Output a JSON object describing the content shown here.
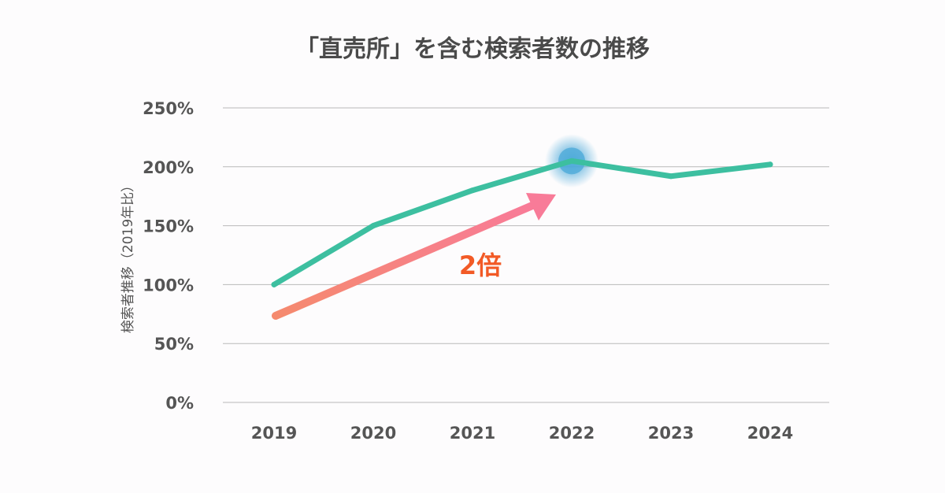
{
  "chart_data": {
    "type": "line",
    "title": "「直売所」を含む検索者数の推移",
    "xlabel": "",
    "ylabel": "検索者推移（2019年比）",
    "categories": [
      "2019",
      "2020",
      "2021",
      "2022",
      "2023",
      "2024"
    ],
    "ylim": [
      0,
      250
    ],
    "yticks": [
      "0%",
      "50%",
      "100%",
      "150%",
      "200%",
      "250%"
    ],
    "grid": true,
    "series": [
      {
        "values": [
          100,
          150,
          180,
          205,
          192,
          202
        ],
        "color": "#3dbfa0"
      }
    ],
    "highlight": {
      "category": "2022",
      "color": "#4aa8d8"
    },
    "annotation": {
      "text": "2倍",
      "arrow_colors": [
        "#f58a6e",
        "#f87b98"
      ],
      "text_color": "#f25a26"
    }
  }
}
